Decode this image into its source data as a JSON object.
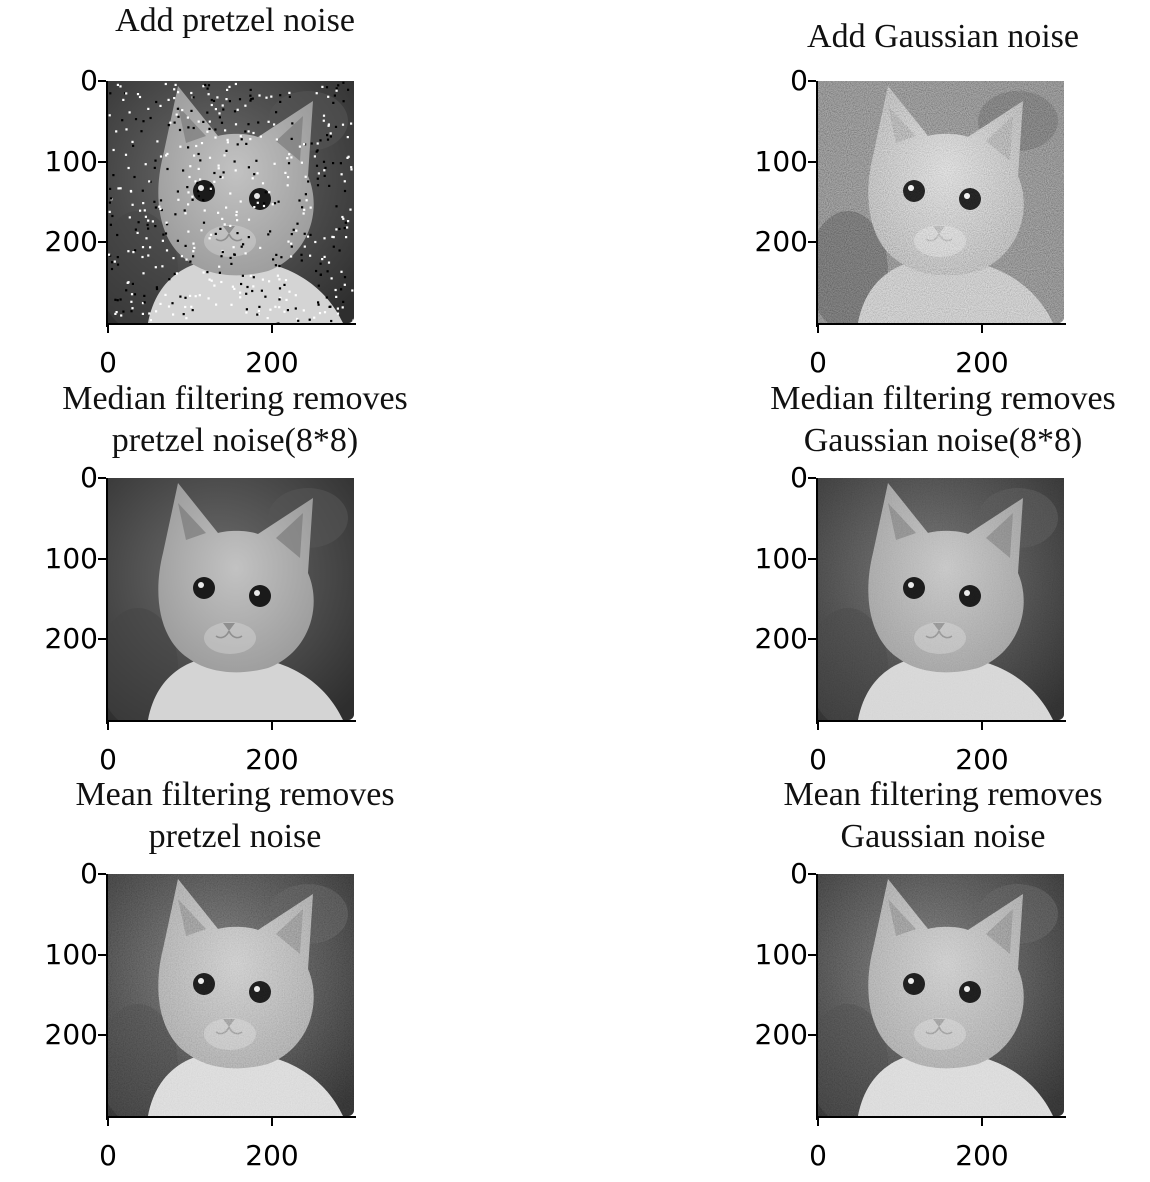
{
  "chart_data": [
    {
      "type": "image",
      "title": "Add pretzel noise",
      "content": "grayscale kitten photo with salt-and-pepper noise",
      "noise": "salt-pepper",
      "xticks": [
        "0",
        "200"
      ],
      "yticks": [
        "0",
        "100",
        "200"
      ],
      "xlim": [
        0,
        300
      ],
      "ylim": [
        300,
        0
      ]
    },
    {
      "type": "image",
      "title": "Add Gaussian noise",
      "content": "grayscale kitten photo with heavy Gaussian noise",
      "noise": "gaussian",
      "xticks": [
        "0",
        "200"
      ],
      "yticks": [
        "0",
        "100",
        "200"
      ],
      "xlim": [
        0,
        300
      ],
      "ylim": [
        300,
        0
      ]
    },
    {
      "type": "image",
      "title": "Median filtering removes\npretzel noise(8*8)",
      "content": "grayscale kitten photo, clean after median filter",
      "noise": "none",
      "xticks": [
        "0",
        "200"
      ],
      "yticks": [
        "0",
        "100",
        "200"
      ],
      "xlim": [
        0,
        300
      ],
      "ylim": [
        300,
        0
      ]
    },
    {
      "type": "image",
      "title": "Median filtering removes\nGaussian noise(8*8)",
      "content": "grayscale kitten photo, slightly grainy after median filter",
      "noise": "light",
      "xticks": [
        "0",
        "200"
      ],
      "yticks": [
        "0",
        "100",
        "200"
      ],
      "xlim": [
        0,
        300
      ],
      "ylim": [
        300,
        0
      ]
    },
    {
      "type": "image",
      "title": "Mean filtering removes\npretzel noise",
      "content": "grayscale kitten photo, mottled after mean filter",
      "noise": "medium",
      "xticks": [
        "0",
        "200"
      ],
      "yticks": [
        "0",
        "100",
        "200"
      ],
      "xlim": [
        0,
        300
      ],
      "ylim": [
        300,
        0
      ]
    },
    {
      "type": "image",
      "title": "Mean filtering removes\nGaussian noise",
      "content": "grayscale kitten photo, grainy after mean filter",
      "noise": "medium",
      "xticks": [
        "0",
        "200"
      ],
      "yticks": [
        "0",
        "100",
        "200"
      ],
      "xlim": [
        0,
        300
      ],
      "ylim": [
        300,
        0
      ]
    }
  ],
  "colors": {
    "background": "#ffffff",
    "axis": "#000000",
    "image_dark": "#2a2a2a",
    "image_light": "#d8d8d8"
  }
}
